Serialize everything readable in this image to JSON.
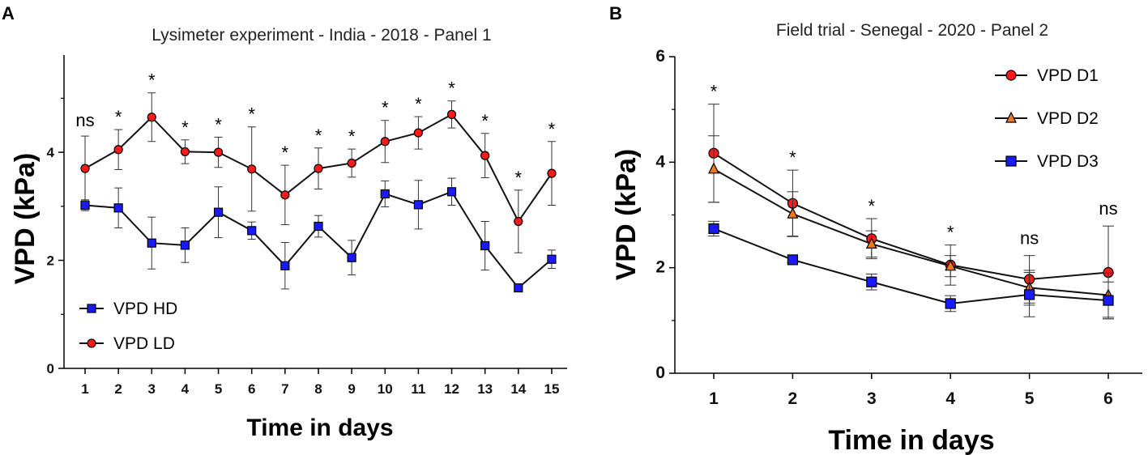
{
  "chart_data": [
    {
      "type": "line",
      "panel_label": "A",
      "title": "Lysimeter experiment - India - 2018 - Panel 1",
      "xlabel": "Time in days",
      "ylabel": "VPD (kPa)",
      "categories": [
        "1",
        "2",
        "3",
        "4",
        "5",
        "6",
        "7",
        "8",
        "9",
        "10",
        "11",
        "12",
        "13",
        "14",
        "15"
      ],
      "ylim": [
        0,
        5.8
      ],
      "yticks": [
        0,
        2,
        4
      ],
      "series": [
        {
          "name": "VPD HD",
          "marker": "square",
          "color": "#1a1aff",
          "values": [
            3.02,
            2.97,
            2.32,
            2.28,
            2.89,
            2.55,
            1.9,
            2.63,
            2.05,
            3.23,
            3.03,
            3.27,
            2.27,
            1.49,
            2.02
          ],
          "errors": [
            0.1,
            0.37,
            0.48,
            0.32,
            0.47,
            0.16,
            0.43,
            0.2,
            0.32,
            0.24,
            0.45,
            0.25,
            0.45,
            0.05,
            0.17
          ]
        },
        {
          "name": "VPD LD",
          "marker": "circle",
          "color": "#ff1a1a",
          "values": [
            3.7,
            4.05,
            4.65,
            4.01,
            4.0,
            3.69,
            3.21,
            3.7,
            3.8,
            4.2,
            4.36,
            4.7,
            3.94,
            2.72,
            3.61
          ],
          "errors": [
            0.6,
            0.37,
            0.45,
            0.22,
            0.28,
            0.78,
            0.55,
            0.38,
            0.26,
            0.39,
            0.3,
            0.25,
            0.41,
            0.58,
            0.59
          ]
        }
      ],
      "significance": [
        "ns",
        "*",
        "*",
        "*",
        "*",
        "*",
        "*",
        "*",
        "*",
        "*",
        "*",
        "*",
        "*",
        "*",
        "*"
      ],
      "legend": [
        "VPD HD",
        "VPD LD"
      ],
      "legend_position": "bottom-left"
    },
    {
      "type": "line",
      "panel_label": "B",
      "title": "Field trial - Senegal - 2020 - Panel 2",
      "xlabel": "Time in days",
      "ylabel": "VPD (kPa)",
      "categories": [
        "1",
        "2",
        "3",
        "4",
        "5",
        "6"
      ],
      "ylim": [
        0,
        6
      ],
      "yticks": [
        0,
        2,
        4,
        6
      ],
      "series": [
        {
          "name": "VPD D1",
          "marker": "circle",
          "color": "#ff1a1a",
          "values": [
            4.17,
            3.22,
            2.55,
            2.05,
            1.78,
            1.91
          ],
          "errors": [
            0.93,
            0.63,
            0.38,
            0.38,
            0.45,
            0.88
          ]
        },
        {
          "name": "VPD D2",
          "marker": "triangle",
          "color": "#f07a1a",
          "values": [
            3.87,
            3.02,
            2.45,
            2.03,
            1.62,
            1.48
          ],
          "errors": [
            0.63,
            0.42,
            0.25,
            0.2,
            0.33,
            0.42
          ]
        },
        {
          "name": "VPD D3",
          "marker": "square",
          "color": "#1a1aff",
          "values": [
            2.74,
            2.15,
            1.73,
            1.32,
            1.49,
            1.38
          ],
          "errors": [
            0.14,
            0.05,
            0.15,
            0.15,
            0.42,
            0.35
          ]
        }
      ],
      "significance": [
        "*",
        "*",
        "*",
        "*",
        "ns",
        "ns"
      ],
      "legend": [
        "VPD D1",
        "VPD D2",
        "VPD D3"
      ],
      "legend_position": "top-right"
    }
  ]
}
